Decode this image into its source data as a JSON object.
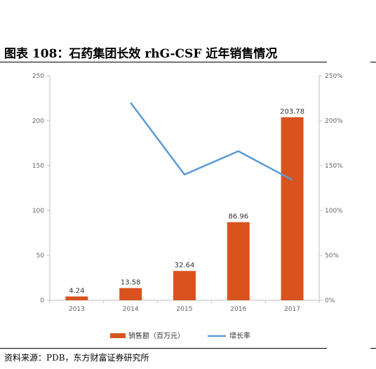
{
  "title": "图表 108：石药集团长效 rhG-CSF 近年销售情况",
  "source": "资料来源：PDB，东方财富证券研究所",
  "chart_data": {
    "type": "bar",
    "categories": [
      "2013",
      "2014",
      "2015",
      "2016",
      "2017"
    ],
    "series": [
      {
        "name": "销售额（百万元）",
        "type": "bar",
        "axis": "left",
        "color": "#D9531E",
        "values": [
          4.24,
          13.58,
          32.64,
          86.96,
          203.78
        ],
        "labels": [
          "4.24",
          "13.58",
          "32.64",
          "86.96",
          "203.78"
        ]
      },
      {
        "name": "增长率",
        "type": "line",
        "axis": "right",
        "color": "#5B9BD5",
        "values": [
          null,
          2.2,
          1.4,
          1.66,
          1.34
        ]
      }
    ],
    "ylim": [
      0,
      250
    ],
    "y_ticks": [
      "0",
      "50",
      "100",
      "150",
      "200",
      "250"
    ],
    "y2lim": [
      0,
      2.5
    ],
    "y2_ticks": [
      "0%",
      "50%",
      "100%",
      "150%",
      "200%",
      "250%"
    ],
    "grid": false,
    "legend": "bottom"
  }
}
